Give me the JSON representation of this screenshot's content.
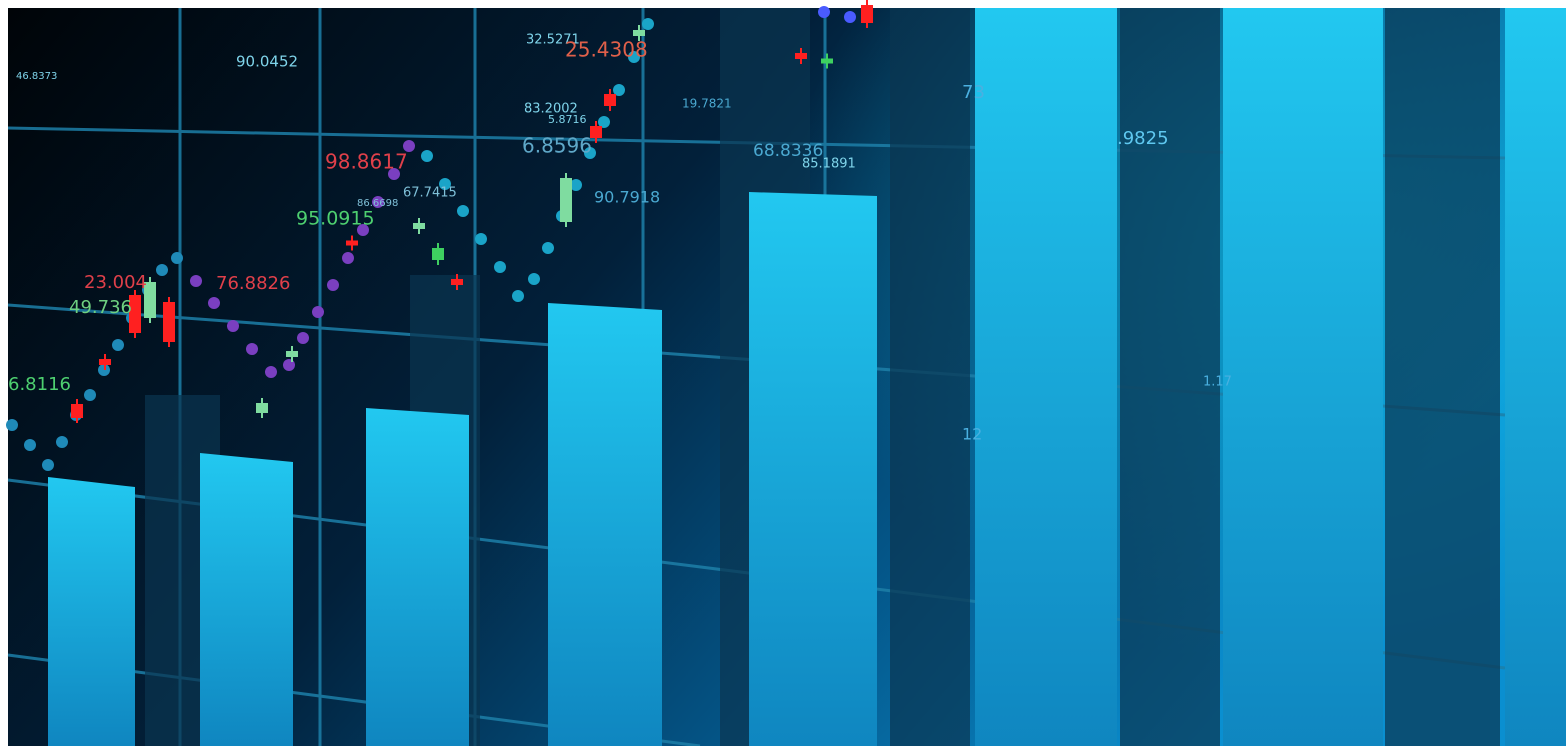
{
  "labels": [
    "90.0452",
    "46.8373",
    "32.5271",
    "25.4308",
    "83.2002",
    "5.8716",
    "19.7821",
    "6.8596",
    "98.8617",
    "67.7415",
    "86.6698",
    "95.0915",
    "90.7918",
    "68.8336",
    "85.1891",
    "23.004",
    "76.8826",
    "49.736",
    "6.8116",
    ".9825",
    "73",
    "12",
    "1.17"
  ]
}
